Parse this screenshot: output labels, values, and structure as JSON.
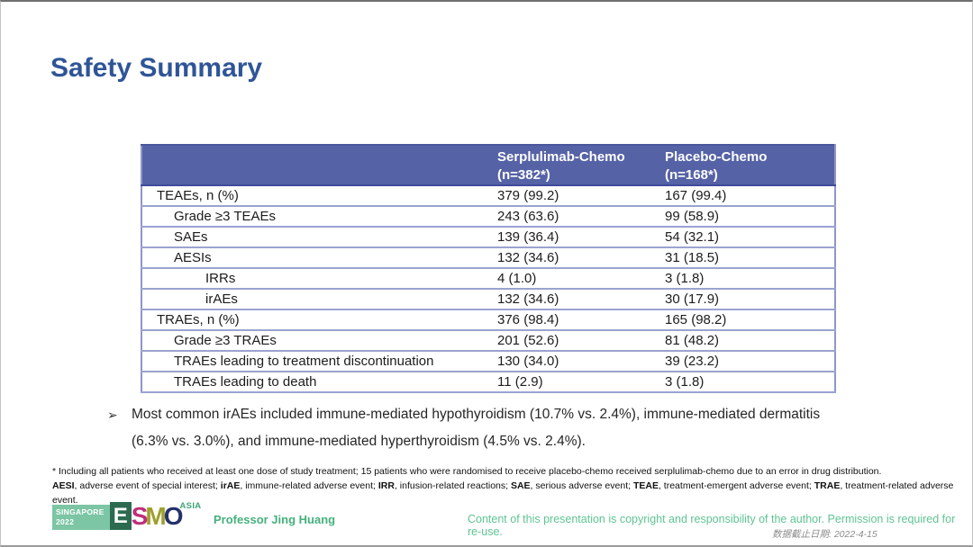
{
  "slide": {
    "title": "Safety Summary"
  },
  "table": {
    "columns": [
      {
        "header": ""
      },
      {
        "header": "Serplulimab-Chemo\n(n=382*)"
      },
      {
        "header": "Placebo-Chemo\n(n=168*)"
      }
    ],
    "rows": [
      {
        "label": "TEAEs, n (%)",
        "indent": 0,
        "serplulimab": "379 (99.2)",
        "placebo": "167 (99.4)"
      },
      {
        "label": "Grade ≥3 TEAEs",
        "indent": 1,
        "serplulimab": "243 (63.6)",
        "placebo": "99 (58.9)"
      },
      {
        "label": "SAEs",
        "indent": 1,
        "serplulimab": "139 (36.4)",
        "placebo": "54 (32.1)"
      },
      {
        "label": "AESIs",
        "indent": 1,
        "serplulimab": "132 (34.6)",
        "placebo": "31 (18.5)"
      },
      {
        "label": "IRRs",
        "indent": 2,
        "serplulimab": "4 (1.0)",
        "placebo": "3 (1.8)"
      },
      {
        "label": "irAEs",
        "indent": 2,
        "serplulimab": "132 (34.6)",
        "placebo": "30 (17.9)"
      },
      {
        "label": "TRAEs, n (%)",
        "indent": 0,
        "serplulimab": "376 (98.4)",
        "placebo": "165 (98.2)"
      },
      {
        "label": "Grade ≥3 TRAEs",
        "indent": 1,
        "serplulimab": "201 (52.6)",
        "placebo": "81 (48.2)"
      },
      {
        "label": "TRAEs leading to treatment discontinuation",
        "indent": 1,
        "serplulimab": "130 (34.0)",
        "placebo": "39 (23.2)"
      },
      {
        "label": "TRAEs leading to death",
        "indent": 1,
        "serplulimab": "11 (2.9)",
        "placebo": "3 (1.8)"
      }
    ]
  },
  "bullet": {
    "marker": "➢",
    "text": "Most common irAEs included immune-mediated hypothyroidism (10.7% vs. 2.4%), immune-mediated dermatitis (6.3% vs. 3.0%), and immune-mediated hyperthyroidism (4.5% vs. 2.4%)."
  },
  "footnotes": {
    "line1": "* Including all patients who received at least one dose of study treatment; 15 patients who were randomised to receive placebo-chemo received serplulimab-chemo due to an error in drug distribution.",
    "line2_segments": [
      {
        "text": "AESI",
        "bold": true
      },
      {
        "text": ", adverse event of special interest; ",
        "bold": false
      },
      {
        "text": "irAE",
        "bold": true
      },
      {
        "text": ", immune-related adverse event; ",
        "bold": false
      },
      {
        "text": "IRR",
        "bold": true
      },
      {
        "text": ", infusion-related reactions; ",
        "bold": false
      },
      {
        "text": "SAE",
        "bold": true
      },
      {
        "text": ", serious adverse event; ",
        "bold": false
      },
      {
        "text": "TEAE",
        "bold": true
      },
      {
        "text": ", treatment-emergent adverse event; ",
        "bold": false
      },
      {
        "text": "TRAE",
        "bold": true
      },
      {
        "text": ", treatment-related adverse event.",
        "bold": false
      }
    ]
  },
  "footer": {
    "logo": {
      "venue": "SINGAPORE\n2022",
      "letters": [
        {
          "char": "E",
          "color": "#ffffff",
          "bg": "#2d6b50"
        },
        {
          "char": "S",
          "color": "#be2e7a"
        },
        {
          "char": "M",
          "color": "#9fa02c"
        },
        {
          "char": "O",
          "color": "#25316b"
        }
      ],
      "region": "ASIA"
    },
    "presenter": "Professor Jing Huang",
    "copyright": "Content of this presentation is copyright and responsibility of the author. Permission is required for re-use.",
    "data_cutoff": "数据截止日期: 2022-4-15"
  },
  "colors": {
    "title_blue": "#2f5597",
    "table_header_bg": "#5662a6",
    "table_border": "#9aa3d0",
    "footer_green": "#45b07c",
    "copyright_green": "#5fc493",
    "cutoff_gray": "#8c8c8c"
  }
}
